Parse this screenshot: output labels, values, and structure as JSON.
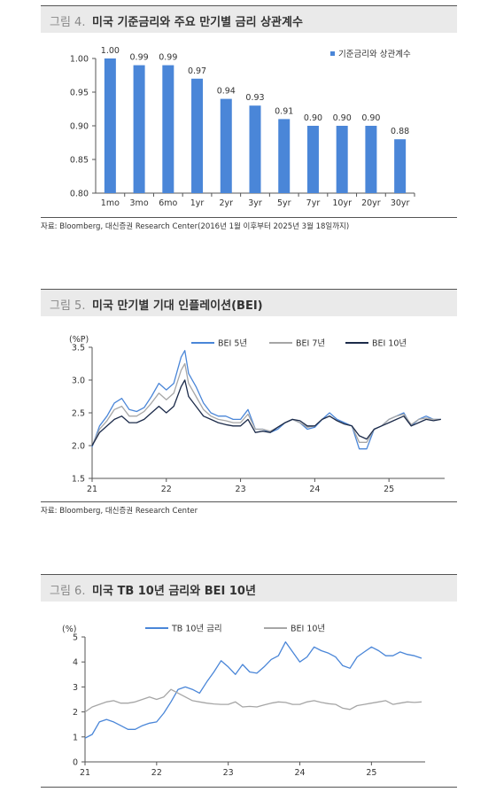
{
  "figures": [
    {
      "number": "그림 4.",
      "title": "미국 기준금리와 주요 만기별 금리 상관계수",
      "source": "자료: Bloomberg, 대신증권 Research Center(2016년 1월 이후부터 2025년 3월 18일까지)"
    },
    {
      "number": "그림 5.",
      "title": "미국 만기별 기대 인플레이션(BEI)",
      "source": "자료: Bloomberg, 대신증권 Research Center"
    },
    {
      "number": "그림 6.",
      "title": "미국 TB 10년 금리와 BEI 10년",
      "source": ""
    }
  ],
  "chart_data": [
    {
      "type": "bar",
      "title": "미국 기준금리와 주요 만기별 금리 상관계수",
      "categories": [
        "1mo",
        "3mo",
        "6mo",
        "1yr",
        "2yr",
        "3yr",
        "5yr",
        "7yr",
        "10yr",
        "20yr",
        "30yr"
      ],
      "series": [
        {
          "name": "기준금리와 상관계수",
          "values": [
            1.0,
            0.99,
            0.99,
            0.97,
            0.94,
            0.93,
            0.91,
            0.9,
            0.9,
            0.9,
            0.88
          ],
          "color": "#4a86d8"
        }
      ],
      "data_labels": [
        "1.00",
        "0.99",
        "0.99",
        "0.97",
        "0.94",
        "0.93",
        "0.91",
        "0.90",
        "0.90",
        "0.90",
        "0.88"
      ],
      "ylim": [
        0.8,
        1.0
      ],
      "yticks": [
        "0.80",
        "0.85",
        "0.90",
        "0.95",
        "1.00"
      ],
      "grid": false,
      "legend": "top-right"
    },
    {
      "type": "line",
      "title": "미국 만기별 기대 인플레이션(BEI)",
      "unit": "(%P)",
      "xlim": [
        21,
        25.75
      ],
      "xticks": [
        "21",
        "22",
        "23",
        "24",
        "25"
      ],
      "ylim": [
        1.5,
        3.5
      ],
      "yticks": [
        "1.5",
        "2.0",
        "2.5",
        "3.0",
        "3.5"
      ],
      "grid": false,
      "legend": "top-right",
      "series": [
        {
          "name": "BEI 5년",
          "color": "#4a86d8",
          "x": [
            21.0,
            21.1,
            21.2,
            21.3,
            21.4,
            21.5,
            21.6,
            21.7,
            21.8,
            21.9,
            22.0,
            22.1,
            22.2,
            22.25,
            22.3,
            22.4,
            22.5,
            22.6,
            22.7,
            22.8,
            22.9,
            23.0,
            23.1,
            23.2,
            23.3,
            23.4,
            23.5,
            23.6,
            23.7,
            23.8,
            23.9,
            24.0,
            24.1,
            24.2,
            24.3,
            24.4,
            24.5,
            24.6,
            24.7,
            24.8,
            24.9,
            25.0,
            25.1,
            25.2,
            25.3,
            25.4,
            25.5,
            25.6,
            25.7
          ],
          "y": [
            1.98,
            2.3,
            2.45,
            2.65,
            2.72,
            2.55,
            2.52,
            2.58,
            2.75,
            2.95,
            2.85,
            2.95,
            3.35,
            3.45,
            3.1,
            2.9,
            2.65,
            2.5,
            2.45,
            2.45,
            2.4,
            2.4,
            2.55,
            2.25,
            2.25,
            2.2,
            2.25,
            2.35,
            2.4,
            2.35,
            2.25,
            2.28,
            2.4,
            2.5,
            2.4,
            2.35,
            2.3,
            1.95,
            1.95,
            2.25,
            2.3,
            2.4,
            2.45,
            2.5,
            2.3,
            2.4,
            2.45,
            2.4,
            2.4
          ]
        },
        {
          "name": "BEI 7년",
          "color": "#a6a6a6",
          "x": [
            21.0,
            21.1,
            21.2,
            21.3,
            21.4,
            21.5,
            21.6,
            21.7,
            21.8,
            21.9,
            22.0,
            22.1,
            22.2,
            22.25,
            22.3,
            22.4,
            22.5,
            22.6,
            22.7,
            22.8,
            22.9,
            23.0,
            23.1,
            23.2,
            23.3,
            23.4,
            23.5,
            23.6,
            23.7,
            23.8,
            23.9,
            24.0,
            24.1,
            24.2,
            24.3,
            24.4,
            24.5,
            24.6,
            24.7,
            24.8,
            24.9,
            25.0,
            25.1,
            25.2,
            25.3,
            25.4,
            25.5,
            25.6,
            25.7
          ],
          "y": [
            2.0,
            2.25,
            2.38,
            2.55,
            2.6,
            2.45,
            2.45,
            2.52,
            2.65,
            2.8,
            2.7,
            2.8,
            3.15,
            3.25,
            2.95,
            2.75,
            2.55,
            2.45,
            2.4,
            2.38,
            2.35,
            2.35,
            2.48,
            2.25,
            2.25,
            2.22,
            2.28,
            2.35,
            2.4,
            2.35,
            2.28,
            2.3,
            2.4,
            2.45,
            2.38,
            2.33,
            2.3,
            2.05,
            2.05,
            2.25,
            2.3,
            2.4,
            2.45,
            2.48,
            2.32,
            2.4,
            2.42,
            2.4,
            2.4
          ]
        },
        {
          "name": "BEI 10년",
          "color": "#1c2b4a",
          "x": [
            21.0,
            21.1,
            21.2,
            21.3,
            21.4,
            21.5,
            21.6,
            21.7,
            21.8,
            21.9,
            22.0,
            22.1,
            22.2,
            22.25,
            22.3,
            22.4,
            22.5,
            22.6,
            22.7,
            22.8,
            22.9,
            23.0,
            23.1,
            23.2,
            23.3,
            23.4,
            23.5,
            23.6,
            23.7,
            23.8,
            23.9,
            24.0,
            24.1,
            24.2,
            24.3,
            24.4,
            24.5,
            24.6,
            24.7,
            24.8,
            24.9,
            25.0,
            25.1,
            25.2,
            25.3,
            25.4,
            25.5,
            25.6,
            25.7
          ],
          "y": [
            2.0,
            2.2,
            2.3,
            2.4,
            2.45,
            2.35,
            2.35,
            2.4,
            2.5,
            2.6,
            2.5,
            2.6,
            2.9,
            3.0,
            2.75,
            2.6,
            2.45,
            2.4,
            2.35,
            2.32,
            2.3,
            2.3,
            2.4,
            2.2,
            2.22,
            2.2,
            2.28,
            2.35,
            2.4,
            2.38,
            2.3,
            2.3,
            2.4,
            2.45,
            2.38,
            2.33,
            2.3,
            2.15,
            2.1,
            2.25,
            2.3,
            2.35,
            2.4,
            2.45,
            2.3,
            2.35,
            2.4,
            2.38,
            2.4
          ]
        }
      ]
    },
    {
      "type": "line",
      "title": "미국 TB 10년 금리와 BEI 10년",
      "unit": "(%)",
      "xlim": [
        21,
        25.75
      ],
      "xticks": [
        "21",
        "22",
        "23",
        "24",
        "25"
      ],
      "ylim": [
        0,
        5
      ],
      "yticks": [
        "0",
        "1",
        "2",
        "3",
        "4",
        "5"
      ],
      "grid": false,
      "legend": "top-center",
      "series": [
        {
          "name": "TB 10년 금리",
          "color": "#4a86d8",
          "x": [
            21.0,
            21.1,
            21.2,
            21.3,
            21.4,
            21.5,
            21.6,
            21.7,
            21.8,
            21.9,
            22.0,
            22.1,
            22.2,
            22.3,
            22.4,
            22.5,
            22.6,
            22.7,
            22.8,
            22.9,
            23.0,
            23.1,
            23.2,
            23.3,
            23.4,
            23.5,
            23.6,
            23.7,
            23.8,
            23.9,
            24.0,
            24.1,
            24.2,
            24.3,
            24.4,
            24.5,
            24.6,
            24.7,
            24.8,
            24.9,
            25.0,
            25.1,
            25.2,
            25.3,
            25.4,
            25.5,
            25.6,
            25.7
          ],
          "y": [
            0.95,
            1.1,
            1.6,
            1.7,
            1.6,
            1.45,
            1.3,
            1.3,
            1.45,
            1.55,
            1.6,
            1.95,
            2.4,
            2.9,
            3.0,
            2.9,
            2.75,
            3.2,
            3.6,
            4.05,
            3.8,
            3.5,
            3.9,
            3.6,
            3.55,
            3.8,
            4.1,
            4.25,
            4.8,
            4.4,
            4.0,
            4.2,
            4.6,
            4.45,
            4.35,
            4.2,
            3.85,
            3.75,
            4.2,
            4.4,
            4.6,
            4.45,
            4.25,
            4.25,
            4.4,
            4.3,
            4.25,
            4.15
          ]
        },
        {
          "name": "BEI 10년",
          "color": "#a6a6a6",
          "x": [
            21.0,
            21.1,
            21.2,
            21.3,
            21.4,
            21.5,
            21.6,
            21.7,
            21.8,
            21.9,
            22.0,
            22.1,
            22.2,
            22.3,
            22.4,
            22.5,
            22.6,
            22.7,
            22.8,
            22.9,
            23.0,
            23.1,
            23.2,
            23.3,
            23.4,
            23.5,
            23.6,
            23.7,
            23.8,
            23.9,
            24.0,
            24.1,
            24.2,
            24.3,
            24.4,
            24.5,
            24.6,
            24.7,
            24.8,
            24.9,
            25.0,
            25.1,
            25.2,
            25.3,
            25.4,
            25.5,
            25.6,
            25.7
          ],
          "y": [
            2.0,
            2.2,
            2.3,
            2.4,
            2.45,
            2.35,
            2.35,
            2.4,
            2.5,
            2.6,
            2.5,
            2.6,
            2.9,
            2.75,
            2.6,
            2.45,
            2.4,
            2.35,
            2.32,
            2.3,
            2.3,
            2.4,
            2.2,
            2.22,
            2.2,
            2.28,
            2.35,
            2.4,
            2.38,
            2.3,
            2.3,
            2.4,
            2.45,
            2.38,
            2.33,
            2.3,
            2.15,
            2.1,
            2.25,
            2.3,
            2.35,
            2.4,
            2.45,
            2.3,
            2.35,
            2.4,
            2.38,
            2.4
          ]
        }
      ]
    }
  ]
}
